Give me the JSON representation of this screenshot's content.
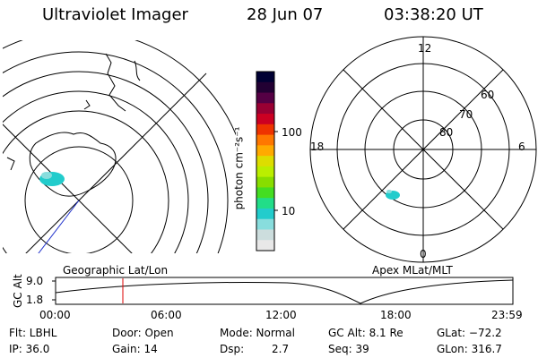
{
  "header": {
    "instrument": "Ultraviolet Imager",
    "date": "28 Jun 07",
    "time": "03:38:20 UT"
  },
  "colorbar": {
    "unit_label": "photon cm⁻²s⁻¹",
    "ticks": [
      "100",
      "10"
    ],
    "colors": [
      "#000033",
      "#220033",
      "#550044",
      "#990033",
      "#cc0022",
      "#ee3300",
      "#ff7700",
      "#ffaa00",
      "#dddd00",
      "#bbee00",
      "#88dd00",
      "#44dd22",
      "#22dd88",
      "#22cccc",
      "#88dddd",
      "#ccdddd",
      "#e8e8e8"
    ]
  },
  "left_map": {
    "caption": "Geographic Lat/Lon"
  },
  "right_map": {
    "caption": "Apex MLat/MLT",
    "hour_labels": {
      "top": "12",
      "left": "18",
      "right": "6",
      "bottom": "0"
    },
    "lat_labels": [
      "60",
      "70",
      "80"
    ]
  },
  "altitude_plot": {
    "ylabel": "GC Alt",
    "y_ticks": [
      "9.0",
      "1.8"
    ],
    "x_ticks": [
      "00:00",
      "06:00",
      "12:00",
      "18:00",
      "23:59"
    ],
    "marker_color": "#dd0000"
  },
  "info": {
    "flt": "Flt: LBHL",
    "ip": "IP: 36.0",
    "door": "Door: Open",
    "gain": "Gain: 14",
    "mode": "Mode: Normal",
    "dsp_label": "Dsp:",
    "dsp_value": "2.7",
    "gc_alt": "GC Alt: 8.1 Re",
    "seq": "Seq: 39",
    "glat": "GLat: −72.2",
    "glon": "GLon: 316.7"
  }
}
